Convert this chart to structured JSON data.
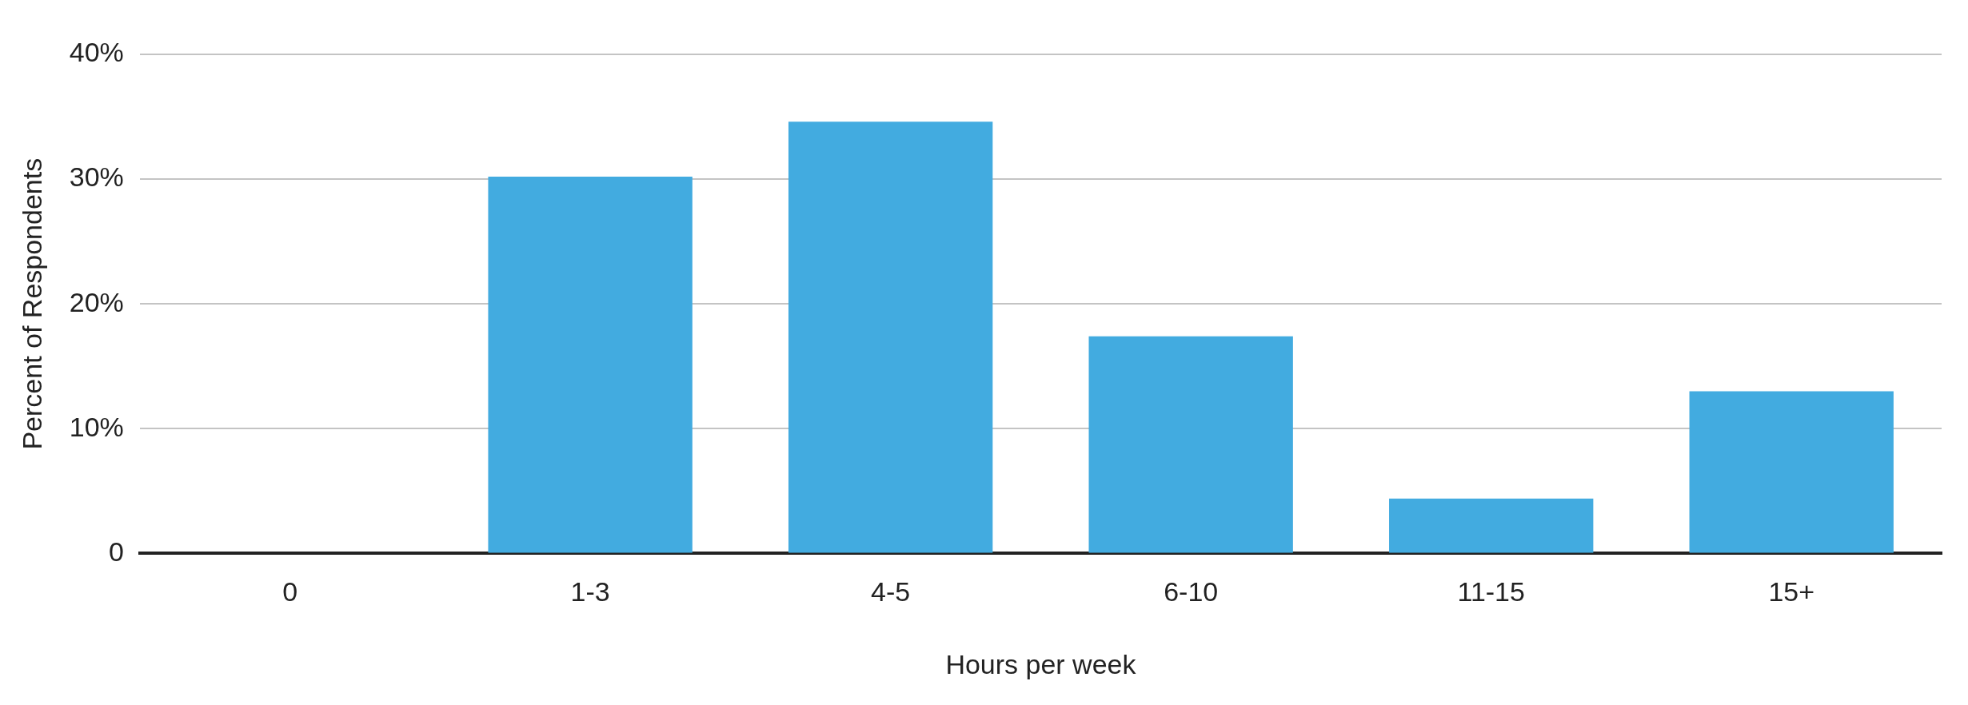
{
  "chart_data": {
    "type": "bar",
    "xlabel": "Hours per week",
    "ylabel": "Percent of Respondents",
    "categories": [
      "0",
      "1-3",
      "4-5",
      "6-10",
      "11-15",
      "15+"
    ],
    "values": [
      0,
      30.2,
      34.6,
      17.4,
      4.4,
      13.0
    ],
    "color": "#42abe0",
    "ylim": [
      0,
      40
    ],
    "yticks": [
      {
        "value": 0,
        "label": "0"
      },
      {
        "value": 10,
        "label": "10%"
      },
      {
        "value": 20,
        "label": "20%"
      },
      {
        "value": 30,
        "label": "30%"
      },
      {
        "value": 40,
        "label": "40%"
      }
    ],
    "grid": "y",
    "legend": false
  }
}
